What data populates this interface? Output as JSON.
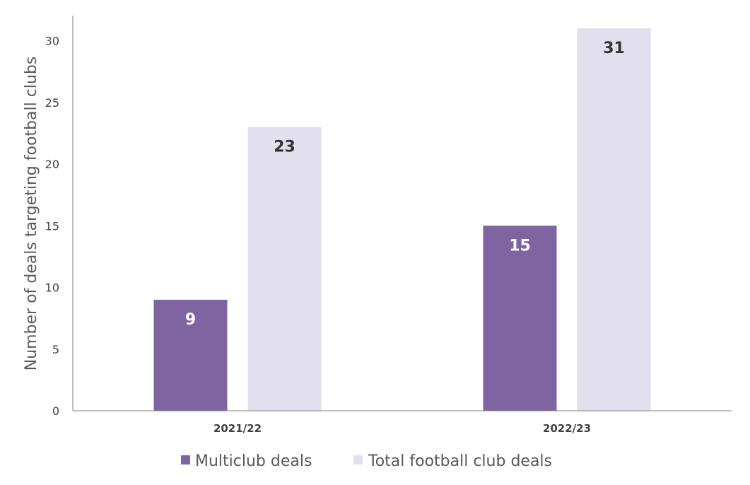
{
  "chart_data": {
    "type": "bar",
    "categories": [
      "2021/22",
      "2022/23"
    ],
    "series": [
      {
        "name": "Multiclub deals",
        "values": [
          9,
          15
        ]
      },
      {
        "name": "Total football club deals",
        "values": [
          23,
          31
        ]
      }
    ],
    "title": "",
    "xlabel": "",
    "ylabel": "Number of deals targeting football clubs",
    "ylim": [
      0,
      32
    ],
    "yticks": [
      0,
      5,
      10,
      15,
      20,
      25,
      30
    ],
    "grid": false,
    "legend_position": "bottom",
    "colors": {
      "Multiclub deals": "#8064a2",
      "Total football club deals": "#e2dfee",
      "label_on_dark": "#ffffff",
      "label_on_light": "#333333",
      "axis": "#808080"
    }
  }
}
